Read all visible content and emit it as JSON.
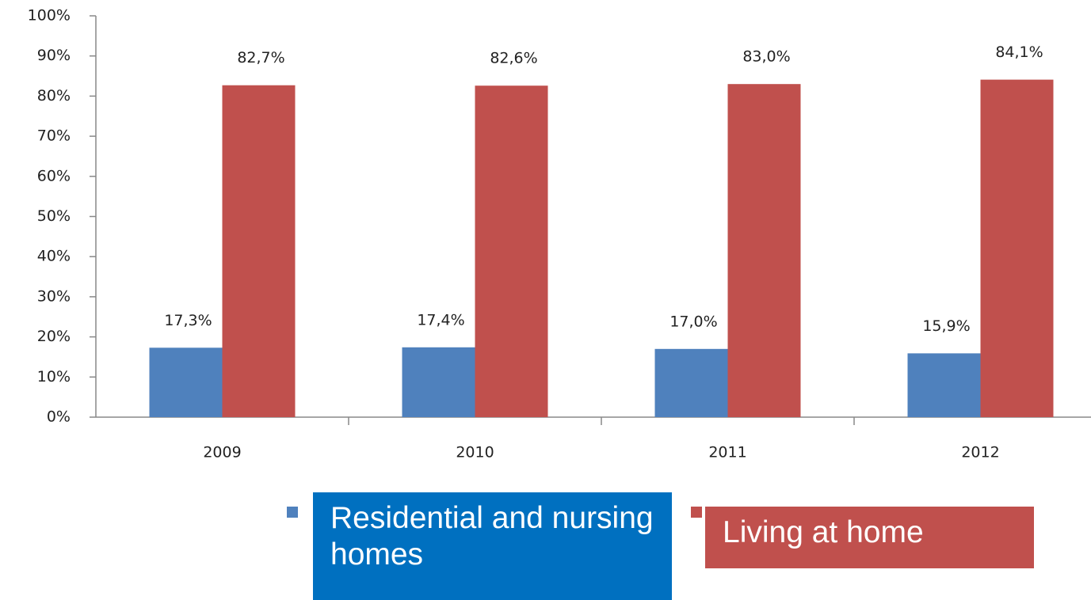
{
  "chart_data": {
    "type": "bar",
    "categories": [
      "2009",
      "2010",
      "2011",
      "2012"
    ],
    "series": [
      {
        "name": "Residential and nursing homes",
        "color": "#4f81bd",
        "values": [
          17.3,
          17.4,
          17.0,
          15.9
        ],
        "value_labels": [
          "17,3%",
          "17,4%",
          "17,0%",
          "15,9%"
        ]
      },
      {
        "name": "Living at home",
        "color": "#c0504d",
        "values": [
          82.7,
          82.6,
          83.0,
          84.1
        ],
        "value_labels": [
          "82,7%",
          "82,6%",
          "83,0%",
          "84,1%"
        ]
      }
    ],
    "ylim": [
      0,
      100
    ],
    "yticks": [
      {
        "value": 0,
        "label": "0%"
      },
      {
        "value": 10,
        "label": "10%"
      },
      {
        "value": 20,
        "label": "20%"
      },
      {
        "value": 30,
        "label": "30%"
      },
      {
        "value": 40,
        "label": "40%"
      },
      {
        "value": 50,
        "label": "50%"
      },
      {
        "value": 60,
        "label": "60%"
      },
      {
        "value": 70,
        "label": "70%"
      },
      {
        "value": 80,
        "label": "80%"
      },
      {
        "value": 90,
        "label": "90%"
      },
      {
        "value": 100,
        "label": "100%"
      }
    ],
    "grid": false,
    "legend": "bottom"
  }
}
